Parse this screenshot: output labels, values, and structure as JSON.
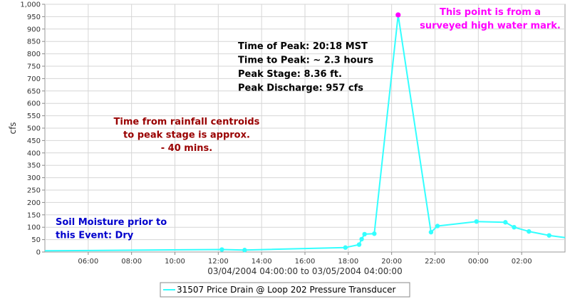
{
  "chart_data": {
    "type": "line",
    "xlabel": "03/04/2004 04:00:00 to 03/05/2004 04:00:00",
    "ylabel": "cfs",
    "x_start_time": "04:00",
    "x_end_time": "04:00 (next day)",
    "xlim_hours": [
      4.0,
      28.0
    ],
    "x_tick_labels": [
      "06:00",
      "08:00",
      "10:00",
      "12:00",
      "14:00",
      "16:00",
      "18:00",
      "20:00",
      "22:00",
      "00:00",
      "02:00"
    ],
    "ylim": [
      0,
      1000
    ],
    "y_ticks": [
      0,
      50,
      100,
      150,
      200,
      250,
      300,
      350,
      400,
      450,
      500,
      550,
      600,
      650,
      700,
      750,
      800,
      850,
      900,
      950,
      1000
    ],
    "y_tick_labels": [
      "0",
      "50",
      "100",
      "150",
      "200",
      "250",
      "300",
      "350",
      "400",
      "450",
      "500",
      "550",
      "600",
      "650",
      "700",
      "750",
      "800",
      "850",
      "900",
      "950",
      "1,000"
    ],
    "grid": true,
    "legend_position": "bottom",
    "series": [
      {
        "name": "31507 Price Drain @ Loop 202 Pressure Transducer",
        "color": "#33FFFF",
        "points": [
          {
            "time": "04:00",
            "value": 5,
            "marker": false
          },
          {
            "time": "12:10",
            "value": 10,
            "marker": true
          },
          {
            "time": "13:13",
            "value": 8,
            "marker": true
          },
          {
            "time": "17:52",
            "value": 18,
            "marker": true
          },
          {
            "time": "18:30",
            "value": 30,
            "marker": true
          },
          {
            "time": "18:37",
            "value": 52,
            "marker": true
          },
          {
            "time": "18:45",
            "value": 72,
            "marker": true
          },
          {
            "time": "19:12",
            "value": 74,
            "marker": true
          },
          {
            "time": "20:18",
            "value": 957,
            "marker": true
          },
          {
            "time": "21:49",
            "value": 80,
            "marker": true
          },
          {
            "time": "22:07",
            "value": 105,
            "marker": true
          },
          {
            "time": "23:55",
            "value": 123,
            "marker": true
          },
          {
            "time": "01:15",
            "value": 120,
            "marker": true
          },
          {
            "time": "01:39",
            "value": 100,
            "marker": true
          },
          {
            "time": "02:20",
            "value": 83,
            "marker": true
          },
          {
            "time": "03:16",
            "value": 67,
            "marker": true
          },
          {
            "time": "04:00",
            "value": 58,
            "marker": false
          }
        ]
      }
    ],
    "highlight_point": {
      "time": "20:18",
      "value": 957,
      "color": "#FF00FF"
    },
    "annotations": [
      {
        "id": "peak_info",
        "color": "#000000",
        "lines": [
          "Time of Peak: 20:18 MST",
          "Time to Peak: ~ 2.3 hours",
          "Peak Stage: 8.36 ft.",
          "Peak Discharge: 957 cfs"
        ]
      },
      {
        "id": "high_water",
        "color": "#FF00FF",
        "lines": [
          "This point is from a",
          "surveyed high water mark."
        ]
      },
      {
        "id": "rainfall",
        "color": "#990000",
        "lines": [
          "Time from rainfall centroids",
          "to peak stage is approx.",
          "- 40 mins."
        ]
      },
      {
        "id": "soil",
        "color": "#0000CC",
        "lines": [
          "Soil Moisture prior to",
          "this Event: Dry"
        ]
      }
    ]
  }
}
